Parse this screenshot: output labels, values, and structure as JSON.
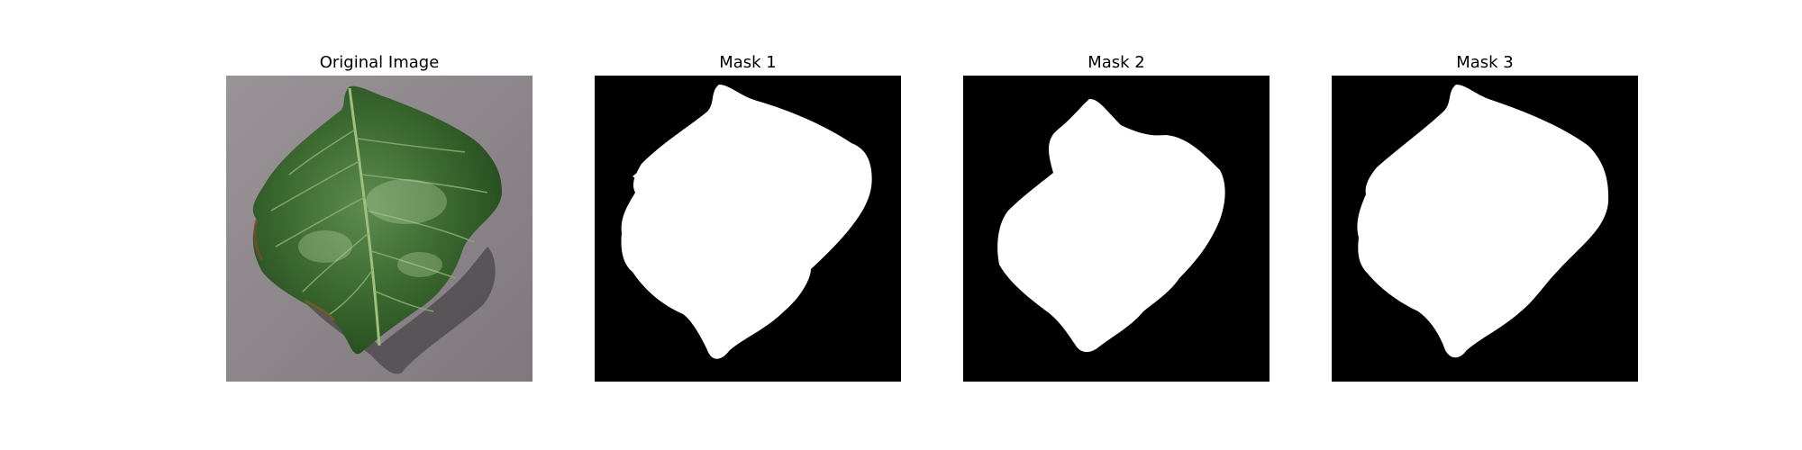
{
  "figure": {
    "panels": [
      {
        "title": "Original Image"
      },
      {
        "title": "Mask 1"
      },
      {
        "title": "Mask 2"
      },
      {
        "title": "Mask 3"
      }
    ]
  },
  "colors": {
    "background_surface": "#8b8487",
    "leaf": "#2f5a25",
    "leaf_highlight": "#5e8c4f",
    "mask_background": "#000000",
    "mask_foreground": "#ffffff"
  }
}
